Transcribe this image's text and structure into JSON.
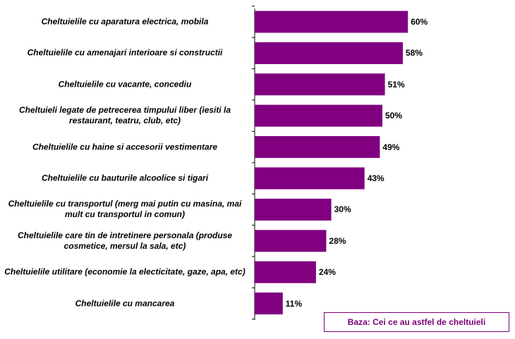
{
  "chart_data": {
    "type": "bar",
    "orientation": "horizontal",
    "categories": [
      "Cheltuielile cu aparatura electrica, mobila",
      "Cheltuielile cu amenajari interioare si constructii",
      "Cheltuielile cu vacante, concediu",
      "Cheltuieli legate de petrecerea timpului liber (iesiti la restaurant, teatru, club, etc)",
      "Cheltuielile cu haine si accesorii vestimentare",
      "Cheltuielile cu bauturile alcoolice si tigari",
      "Cheltuielile cu transportul (merg mai putin cu masina, mai mult cu transportul in comun)",
      "Cheltuielile care tin de intretinere personala (produse cosmetice, mersul la sala, etc)",
      "Cheltuielile utilitare (economie la electicitate, gaze, apa, etc)",
      "Cheltuielile cu mancarea"
    ],
    "values": [
      60,
      58,
      51,
      50,
      49,
      43,
      30,
      28,
      24,
      11
    ],
    "value_labels": [
      "60%",
      "58%",
      "51%",
      "50%",
      "49%",
      "43%",
      "30%",
      "28%",
      "24%",
      "11%"
    ],
    "xlim": [
      0,
      100
    ],
    "grid": false,
    "bar_color": "#800080",
    "axis_color": "#000000"
  },
  "legend": {
    "text": "Baza: Cei ce au astfel de cheltuieli",
    "color": "#7a0078"
  }
}
